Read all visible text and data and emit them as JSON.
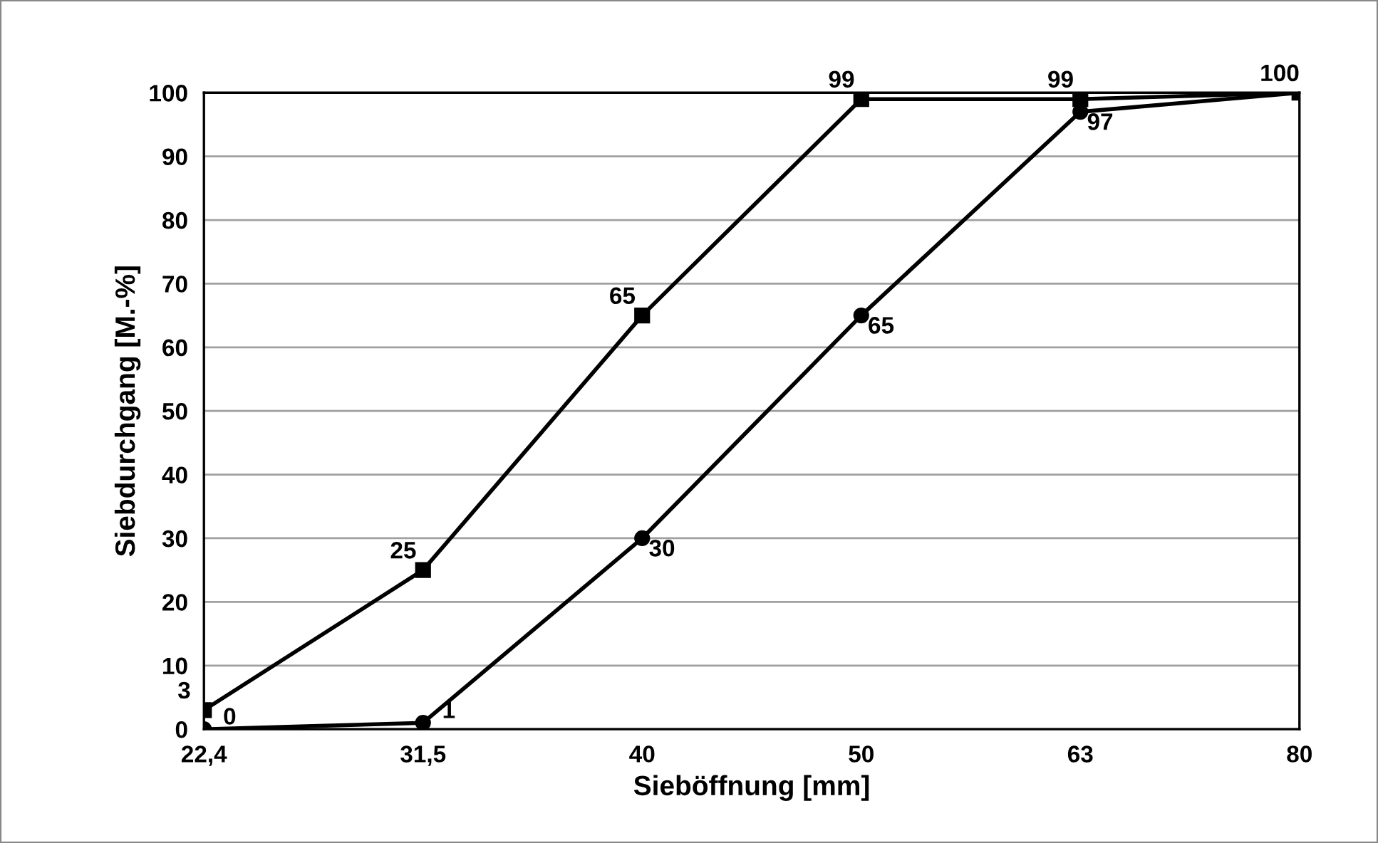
{
  "chart_data": {
    "type": "line",
    "xlabel": "Sieböffnung [mm]",
    "ylabel": "Siebdurchgang [M.-%]",
    "categories": [
      "22,4",
      "31,5",
      "40",
      "50",
      "63",
      "80"
    ],
    "series": [
      {
        "color": "#000000",
        "marker": "square",
        "values": [
          3,
          25,
          65,
          99,
          99,
          100
        ],
        "value_labels": [
          "3",
          "25",
          "65",
          "99",
          "99",
          "100"
        ]
      },
      {
        "color": "#000000",
        "marker": "circle",
        "values": [
          0,
          1,
          30,
          65,
          97,
          100
        ],
        "value_labels": [
          "0",
          "1",
          "30",
          "65",
          "97",
          null
        ]
      }
    ],
    "ylim": [
      0,
      100
    ],
    "yticks": [
      0,
      10,
      20,
      30,
      40,
      50,
      60,
      70,
      80,
      90,
      100
    ],
    "grid": "y",
    "line_style": "solid"
  }
}
